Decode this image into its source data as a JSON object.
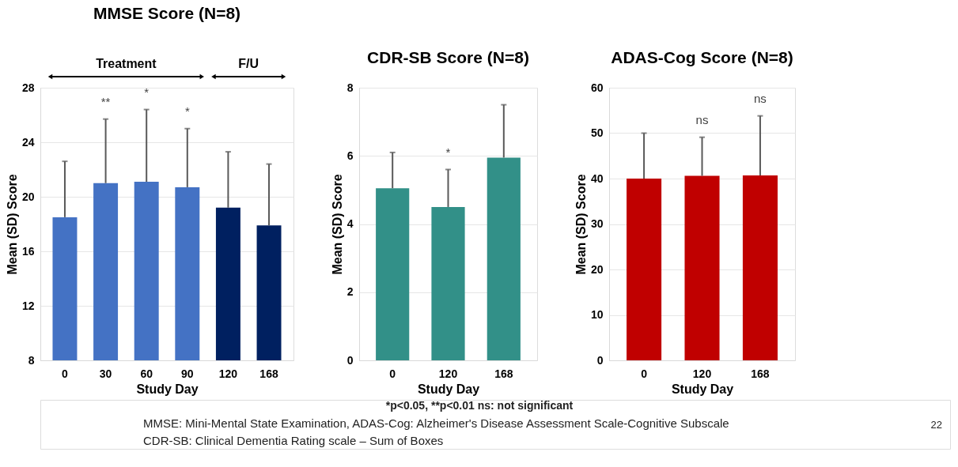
{
  "chart_data": [
    {
      "type": "bar",
      "title": "MMSE Score (N=8)",
      "xlabel": "Study Day",
      "ylabel": "Mean (SD) Score",
      "categories": [
        "0",
        "30",
        "60",
        "90",
        "120",
        "168"
      ],
      "values": [
        18.5,
        21.0,
        21.1,
        20.7,
        19.2,
        17.9
      ],
      "errors": [
        [
          18.5,
          22.6
        ],
        [
          21.0,
          25.7
        ],
        [
          21.1,
          26.4
        ],
        [
          20.7,
          25.0
        ],
        [
          19.2,
          23.3
        ],
        [
          17.9,
          22.4
        ]
      ],
      "colors": [
        "#4472c4",
        "#4472c4",
        "#4472c4",
        "#4472c4",
        "#002060",
        "#002060"
      ],
      "ylim": [
        8,
        28
      ],
      "yticks": [
        8,
        12,
        16,
        20,
        24,
        28
      ],
      "grid": "y",
      "annotations": [
        "Treatment",
        "F/U",
        {
          "text": "**",
          "x": "30",
          "y": 25.7
        },
        {
          "text": "*",
          "x": "60",
          "y": 26.4
        },
        {
          "text": "*",
          "x": "90",
          "y": 25.0
        }
      ]
    },
    {
      "type": "bar",
      "title": "CDR-SB Score (N=8)",
      "xlabel": "Study Day",
      "ylabel": "Mean (SD) Score",
      "categories": [
        "0",
        "120",
        "168"
      ],
      "values": [
        5.05,
        4.5,
        5.95
      ],
      "errors": [
        [
          5.05,
          6.1
        ],
        [
          4.5,
          5.6
        ],
        [
          5.95,
          7.5
        ]
      ],
      "color": "#329088",
      "ylim": [
        0,
        8
      ],
      "yticks": [
        0,
        2,
        4,
        6,
        8
      ],
      "grid": "y",
      "annotations": [
        {
          "text": "*",
          "x": "120",
          "y": 5.6
        }
      ]
    },
    {
      "type": "bar",
      "title": "ADAS-Cog Score (N=8)",
      "xlabel": "Study Day",
      "ylabel": "Mean (SD) Score",
      "categories": [
        "0",
        "120",
        "168"
      ],
      "values": [
        40.0,
        40.6,
        40.7
      ],
      "errors": [
        [
          40.0,
          50.0
        ],
        [
          40.6,
          49.1
        ],
        [
          40.7,
          53.8
        ]
      ],
      "color": "#c00000",
      "ylim": [
        0,
        60
      ],
      "yticks": [
        0,
        10,
        20,
        30,
        40,
        50,
        60
      ],
      "grid": "y",
      "annotations": [
        {
          "text": "ns",
          "x": "120",
          "y": 49.1
        },
        {
          "text": "ns",
          "x": "168",
          "y": 53.8
        }
      ]
    },
    {
      "type": "other",
      "annotations": [
        "*p<0.05, **p<0.01  ns: not significant",
        "MMSE: Mini-Mental State Examination, ADAS-Cog: Alzheimer's Disease Assessment Scale-Cognitive Subscale",
        "CDR-SB: Clinical Dementia Rating scale – Sum of Boxes",
        "22"
      ]
    }
  ]
}
